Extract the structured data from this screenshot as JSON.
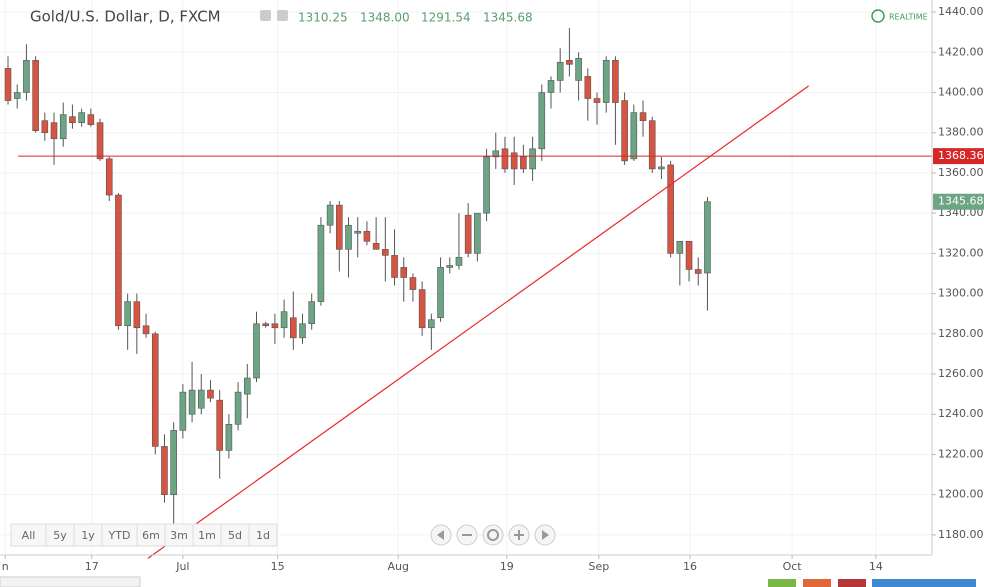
{
  "chart_data": {
    "type": "candlestick",
    "title": "Gold/U.S. Dollar, D, FXCM",
    "legend_values": [
      "1310.25",
      "1348.00",
      "1291.54",
      "1345.68"
    ],
    "realtime_label": "REALTIME",
    "range_buttons": [
      "All",
      "5y",
      "1y",
      "YTD",
      "6m",
      "3m",
      "1m",
      "5d",
      "1d"
    ],
    "up_color": "#6ba583",
    "down_color": "#d75442",
    "open": [
      1412,
      1397,
      1400,
      1416,
      1386,
      1385,
      1377,
      1388,
      1385,
      1389,
      1385,
      1367,
      1349,
      1284,
      1296,
      1284,
      1280,
      1224,
      1200,
      1232,
      1240,
      1243,
      1252,
      1247,
      1222,
      1235,
      1250,
      1258,
      1285,
      1285,
      1283,
      1288,
      1278,
      1285,
      1296,
      1334,
      1344,
      1322,
      1330,
      1331,
      1325,
      1322,
      1319,
      1313,
      1308,
      1302,
      1283,
      1288,
      1313,
      1314,
      1339,
      1320,
      1340,
      1368,
      1372,
      1370,
      1368,
      1362,
      1372,
      1400,
      1406,
      1416,
      1406,
      1408,
      1397,
      1395,
      1416,
      1396,
      1367,
      1390,
      1386,
      1362,
      1364,
      1320,
      1326,
      1312,
      1310.25
    ],
    "high": [
      1418,
      1404,
      1424,
      1418,
      1390,
      1390,
      1395,
      1394,
      1392,
      1392,
      1387,
      1368,
      1350,
      1300,
      1300,
      1290,
      1281,
      1230,
      1236,
      1255,
      1266,
      1260,
      1257,
      1252,
      1240,
      1256,
      1265,
      1291,
      1286,
      1290,
      1297,
      1301,
      1290,
      1300,
      1338,
      1346,
      1346,
      1338,
      1338,
      1336,
      1338,
      1338,
      1332,
      1318,
      1310,
      1306,
      1290,
      1318,
      1318,
      1340,
      1345,
      1340,
      1372,
      1380,
      1378,
      1378,
      1374,
      1378,
      1404,
      1408,
      1422,
      1432,
      1420,
      1412,
      1400,
      1418,
      1418,
      1400,
      1394,
      1396,
      1388,
      1368,
      1366,
      1326,
      1326,
      1318,
      1348
    ],
    "low": [
      1394,
      1392,
      1396,
      1380,
      1376,
      1364,
      1373,
      1382,
      1383,
      1383,
      1366,
      1346,
      1282,
      1272,
      1270,
      1278,
      1220,
      1196,
      1182,
      1228,
      1236,
      1240,
      1246,
      1208,
      1218,
      1232,
      1238,
      1256,
      1283,
      1275,
      1278,
      1272,
      1275,
      1282,
      1294,
      1330,
      1311,
      1308,
      1318,
      1324,
      1322,
      1306,
      1304,
      1296,
      1296,
      1279,
      1272,
      1286,
      1310,
      1312,
      1318,
      1316,
      1336,
      1362,
      1360,
      1354,
      1360,
      1356,
      1366,
      1392,
      1400,
      1408,
      1396,
      1386,
      1384,
      1390,
      1374,
      1364,
      1366,
      1378,
      1360,
      1357,
      1318,
      1304,
      1306,
      1304,
      1291.54
    ],
    "close": [
      1396,
      1400,
      1416,
      1381,
      1380,
      1377,
      1389,
      1385,
      1390,
      1384,
      1367,
      1349,
      1284,
      1296,
      1283,
      1280,
      1224,
      1200,
      1232,
      1251,
      1252,
      1252,
      1248,
      1222,
      1235,
      1251,
      1258,
      1285,
      1284,
      1283,
      1291,
      1278,
      1285,
      1296,
      1334,
      1344,
      1322,
      1334,
      1331,
      1326,
      1322,
      1319,
      1308,
      1308,
      1302,
      1283,
      1287,
      1313,
      1314,
      1318,
      1320,
      1340,
      1368,
      1371,
      1362,
      1362,
      1362,
      1372,
      1400,
      1406,
      1415,
      1414,
      1417,
      1397,
      1395,
      1416,
      1395,
      1366,
      1390,
      1386,
      1362,
      1363,
      1320,
      1326,
      1312,
      1310,
      1345.68
    ],
    "last_price": 1345.68,
    "hline": 1368.36,
    "trendline": {
      "x": [
        15.2,
        87
      ],
      "values": [
        1168.3,
        1403.3
      ]
    },
    "ylim": [
      1170,
      1446
    ],
    "yticks": [
      {
        "value": 1180,
        "label": "1180.00"
      },
      {
        "value": 1200,
        "label": "1200.00"
      },
      {
        "value": 1220,
        "label": "1220.00"
      },
      {
        "value": 1240,
        "label": "1240.00"
      },
      {
        "value": 1260,
        "label": "1260.00"
      },
      {
        "value": 1280,
        "label": "1280.00"
      },
      {
        "value": 1300,
        "label": "1300.00"
      },
      {
        "value": 1320,
        "label": "1320.00"
      },
      {
        "value": 1340,
        "label": "1340.00"
      },
      {
        "value": 1360,
        "label": "1360.00"
      },
      {
        "value": 1380,
        "label": "1380.00"
      },
      {
        "value": 1400,
        "label": "1400.00"
      },
      {
        "value": 1420,
        "label": "1420.00"
      },
      {
        "value": 1440,
        "label": "1440.00"
      }
    ],
    "xlim": [
      -0.87,
      100.4
    ],
    "xticks": [
      {
        "value": -0.3,
        "label": "n"
      },
      {
        "value": 9.1,
        "label": "17"
      },
      {
        "value": 19.0,
        "label": "Jul"
      },
      {
        "value": 29.3,
        "label": "15"
      },
      {
        "value": 42.4,
        "label": "Aug"
      },
      {
        "value": 54.2,
        "label": "19"
      },
      {
        "value": 64.2,
        "label": "Sep"
      },
      {
        "value": 74.1,
        "label": "16"
      },
      {
        "value": 85.2,
        "label": "Oct"
      },
      {
        "value": 94.3,
        "label": "14"
      }
    ],
    "grid": true
  }
}
